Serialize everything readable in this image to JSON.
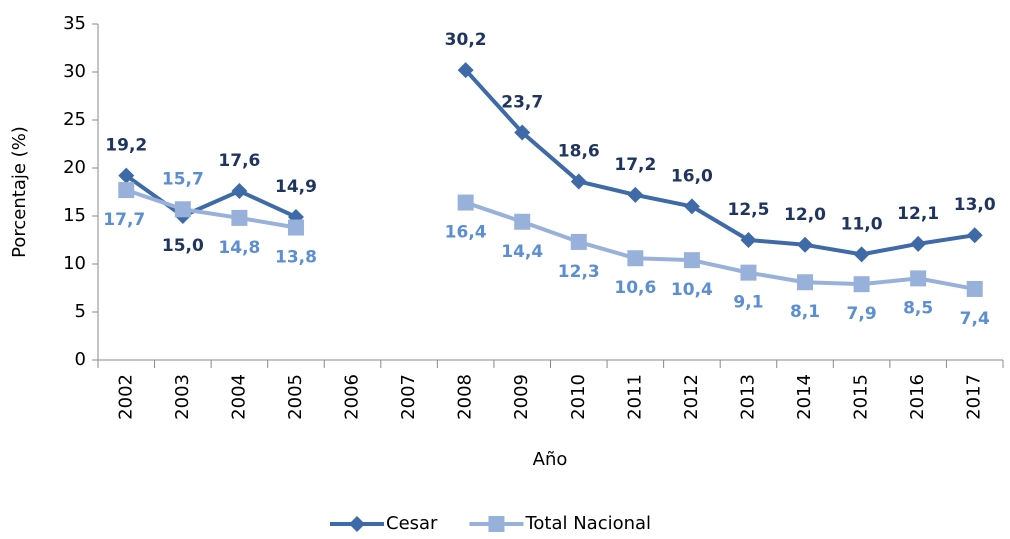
{
  "chart_data": {
    "type": "line",
    "x_label": "Año",
    "y_label": "Porcentaje (%)",
    "categories": [
      "2002",
      "2003",
      "2004",
      "2005",
      "2006",
      "2007",
      "2008",
      "2009",
      "2010",
      "2011",
      "2012",
      "2013",
      "2014",
      "2015",
      "2016",
      "2017"
    ],
    "series": [
      {
        "name": "Cesar",
        "color": "#3e6aa8",
        "label_color": "#1f3560",
        "marker": "diamond",
        "values": [
          19.2,
          15.0,
          17.6,
          14.9,
          null,
          null,
          30.2,
          23.7,
          18.6,
          17.2,
          16.0,
          12.5,
          12.0,
          11.0,
          12.1,
          13.0
        ],
        "value_labels": [
          "19,2",
          "15,0",
          "17,6",
          "14,9",
          null,
          null,
          "30,2",
          "23,7",
          "18,6",
          "17,2",
          "16,0",
          "12,5",
          "12,0",
          "11,0",
          "12,1",
          "13,0"
        ]
      },
      {
        "name": "Total Nacional",
        "color": "#98b1da",
        "label_color": "#5b8ed3",
        "marker": "square",
        "values": [
          17.7,
          15.7,
          14.8,
          13.8,
          null,
          null,
          16.4,
          14.4,
          12.3,
          10.6,
          10.4,
          9.1,
          8.1,
          7.9,
          8.5,
          7.4
        ],
        "value_labels": [
          "17,7",
          "15,7",
          "14,8",
          "13,8",
          null,
          null,
          "16,4",
          "14,4",
          "12,3",
          "10,6",
          "10,4",
          "9,1",
          "8,1",
          "7,9",
          "8,5",
          "7,4"
        ]
      }
    ],
    "ylim": [
      0,
      35
    ],
    "yticks": [
      0,
      5,
      10,
      15,
      20,
      25,
      30,
      35
    ],
    "grid": false,
    "legend": "bottom"
  }
}
